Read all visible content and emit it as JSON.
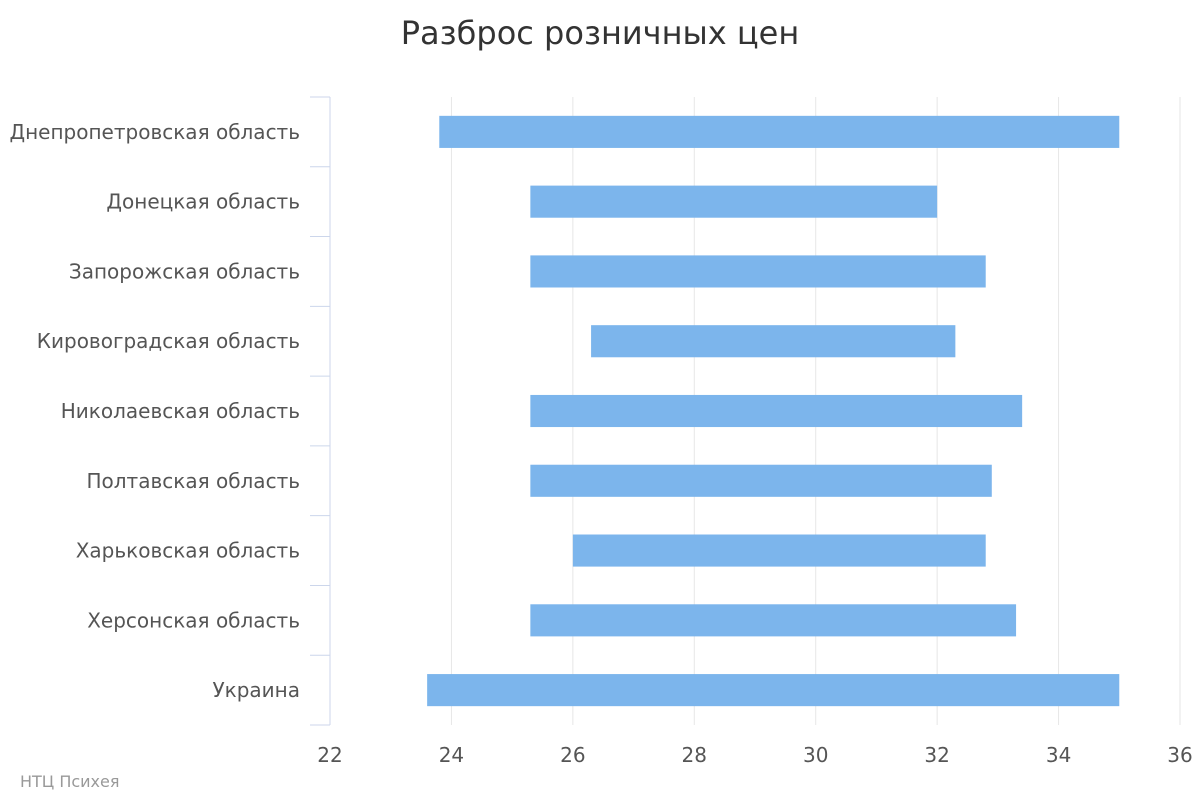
{
  "title": "Разброс розничных цен",
  "credits": "НТЦ Психея",
  "colors": {
    "bar": "#7cb5ec",
    "grid": "#e6e6e6",
    "axis_line": "#ccd6eb",
    "text": "#555555",
    "title": "#333333"
  },
  "chart_data": {
    "type": "bar",
    "orientation": "horizontal",
    "subtype": "range",
    "title": "Разброс розничных цен",
    "categories": [
      "Днепропетровская область",
      "Донецкая область",
      "Запорожская область",
      "Кировоградская область",
      "Николаевская область",
      "Полтавская область",
      "Харьковская область",
      "Херсонская область",
      "Украина"
    ],
    "low": [
      23.8,
      25.3,
      25.3,
      26.3,
      25.3,
      25.3,
      26.0,
      25.3,
      23.6
    ],
    "high": [
      35.0,
      32.0,
      32.8,
      32.3,
      33.4,
      32.9,
      32.8,
      33.3,
      35.0
    ],
    "xlim": [
      22,
      36
    ],
    "xticks": [
      22,
      24,
      26,
      28,
      30,
      32,
      34,
      36
    ],
    "xlabel": "",
    "ylabel": "",
    "grid": true,
    "legend": false
  }
}
